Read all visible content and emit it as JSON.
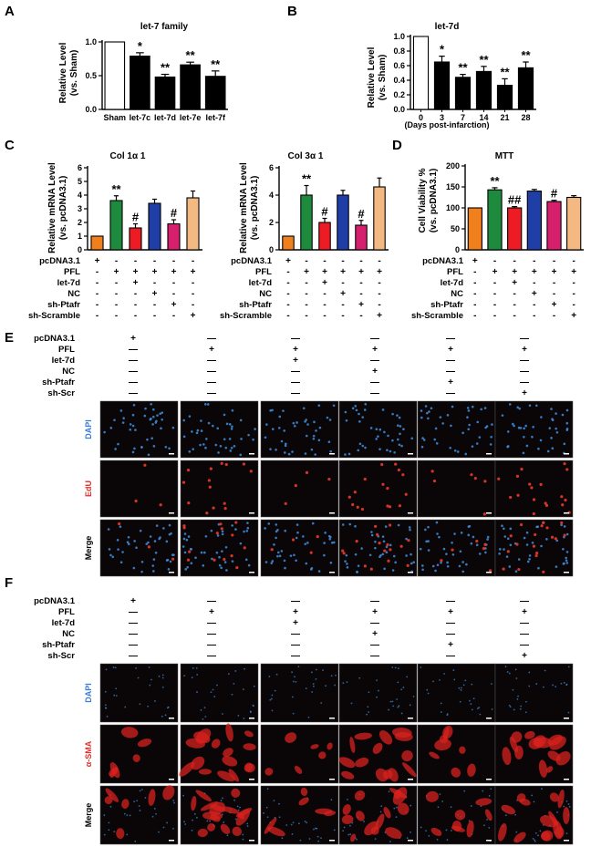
{
  "panels": {
    "A": "A",
    "B": "B",
    "C": "C",
    "D": "D",
    "E": "E",
    "F": "F"
  },
  "chart_data": [
    {
      "id": "A",
      "type": "bar",
      "title": "let-7 family",
      "ylabel": "Relative Level (vs. Sham)",
      "xlabel": "",
      "categories": [
        "Sham",
        "let-7c",
        "let-7d",
        "let-7e",
        "let-7f"
      ],
      "values": [
        1.0,
        0.79,
        0.48,
        0.66,
        0.49
      ],
      "errors": [
        0,
        0.05,
        0.04,
        0.04,
        0.08
      ],
      "significance": [
        "",
        "*",
        "**",
        "**",
        "**"
      ],
      "ylim": [
        0,
        1.0
      ],
      "yticks": [
        "0.0",
        "0.5",
        "1.0"
      ],
      "colors": [
        "#ffffff",
        "#000000",
        "#000000",
        "#000000",
        "#000000"
      ]
    },
    {
      "id": "B",
      "type": "bar",
      "title": "let-7d",
      "ylabel": "Relative Level (vs. Sham)",
      "xlabel": "(Days post-infarction)",
      "categories": [
        "0",
        "3",
        "7",
        "14",
        "21",
        "28"
      ],
      "values": [
        1.0,
        0.65,
        0.44,
        0.52,
        0.33,
        0.57
      ],
      "errors": [
        0,
        0.08,
        0.04,
        0.07,
        0.09,
        0.08
      ],
      "significance": [
        "",
        "*",
        "**",
        "**",
        "**",
        "**"
      ],
      "ylim": [
        0,
        1.0
      ],
      "yticks": [
        "0.0",
        "0.2",
        "0.4",
        "0.6",
        "0.8",
        "1.0"
      ],
      "colors": [
        "#ffffff",
        "#000000",
        "#000000",
        "#000000",
        "#000000",
        "#000000"
      ]
    },
    {
      "id": "C1",
      "type": "bar",
      "title": "Col 1α 1",
      "ylabel": "Relative mRNA Level (vs. pcDNA3.1)",
      "xlabel": "",
      "values": [
        1.0,
        3.6,
        1.6,
        3.4,
        1.9,
        3.8
      ],
      "errors": [
        0,
        0.35,
        0.3,
        0.3,
        0.3,
        0.5
      ],
      "significance": [
        "",
        "**",
        "#",
        "",
        "#",
        ""
      ],
      "ylim": [
        0,
        6
      ],
      "yticks": [
        "0",
        "1",
        "2",
        "3",
        "4",
        "5",
        "6"
      ],
      "colors": [
        "#f07f1e",
        "#1e8a3e",
        "#ed1c24",
        "#1f3fa6",
        "#d6206e",
        "#f4b982"
      ]
    },
    {
      "id": "C2",
      "type": "bar",
      "title": "Col 3α 1",
      "ylabel": "Relative mRNA Level (vs. pcDNA3.1)",
      "xlabel": "",
      "values": [
        1.0,
        4.0,
        2.0,
        4.0,
        1.8,
        4.6
      ],
      "errors": [
        0,
        0.7,
        0.3,
        0.35,
        0.35,
        0.65
      ],
      "significance": [
        "",
        "**",
        "#",
        "",
        "#",
        ""
      ],
      "ylim": [
        0,
        6
      ],
      "yticks": [
        "0",
        "2",
        "4",
        "6"
      ],
      "colors": [
        "#f07f1e",
        "#1e8a3e",
        "#ed1c24",
        "#1f3fa6",
        "#d6206e",
        "#f4b982"
      ]
    },
    {
      "id": "D",
      "type": "bar",
      "title": "MTT",
      "ylabel": "Cell Viability % (vs. pcDNA3.1)",
      "xlabel": "",
      "values": [
        100,
        143,
        100,
        140,
        115,
        125
      ],
      "errors": [
        0,
        5,
        3,
        4,
        3,
        4
      ],
      "significance": [
        "",
        "**",
        "##",
        "",
        "#",
        ""
      ],
      "ylim": [
        0,
        200
      ],
      "yticks": [
        "0",
        "50",
        "100",
        "150",
        "200"
      ],
      "colors": [
        "#f07f1e",
        "#1e8a3e",
        "#ed1c24",
        "#1f3fa6",
        "#d6206e",
        "#f4b982"
      ]
    }
  ],
  "tableC": {
    "rows": [
      {
        "label": "pcDNA3.1",
        "signs": [
          "+",
          "-",
          "-",
          "-",
          "-",
          "-"
        ]
      },
      {
        "label": "PFL",
        "signs": [
          "-",
          "+",
          "+",
          "+",
          "+",
          "+"
        ]
      },
      {
        "label": "let-7d",
        "signs": [
          "-",
          "-",
          "+",
          "-",
          "-",
          "-"
        ]
      },
      {
        "label": "NC",
        "signs": [
          "-",
          "-",
          "-",
          "+",
          "-",
          "-"
        ]
      },
      {
        "label": "sh-Ptafr",
        "signs": [
          "-",
          "-",
          "-",
          "-",
          "+",
          "-"
        ]
      },
      {
        "label": "sh-Scramble",
        "signs": [
          "-",
          "-",
          "-",
          "-",
          "-",
          "+"
        ]
      }
    ]
  },
  "tableE": {
    "rows": [
      {
        "label": "pcDNA3.1",
        "signs": [
          "+",
          "—",
          "—",
          "—",
          "—",
          "—"
        ]
      },
      {
        "label": "PFL",
        "signs": [
          "—",
          "+",
          "+",
          "+",
          "+",
          "+"
        ]
      },
      {
        "label": "let-7d",
        "signs": [
          "—",
          "—",
          "+",
          "—",
          "—",
          "—"
        ]
      },
      {
        "label": "NC",
        "signs": [
          "—",
          "—",
          "—",
          "+",
          "—",
          "—"
        ]
      },
      {
        "label": "sh-Ptafr",
        "signs": [
          "—",
          "—",
          "—",
          "—",
          "+",
          "—"
        ]
      },
      {
        "label": "sh-Scr",
        "signs": [
          "—",
          "—",
          "—",
          "—",
          "—",
          "+"
        ]
      }
    ]
  },
  "imagesE": {
    "rows": [
      {
        "label": "DAPI",
        "color": "#3a7bd5",
        "dot": "#3f8fe0"
      },
      {
        "label": "EdU",
        "color": "#e0302a",
        "dot": "#ee3a2a"
      },
      {
        "label": "Merge",
        "color": "#000000",
        "dot": "#3f8fe0"
      }
    ]
  },
  "imagesF": {
    "rows": [
      {
        "label": "DAPI",
        "color": "#3a7bd5"
      },
      {
        "label": "α-SMA",
        "color": "#e0302a"
      },
      {
        "label": "Merge",
        "color": "#000000"
      }
    ]
  }
}
